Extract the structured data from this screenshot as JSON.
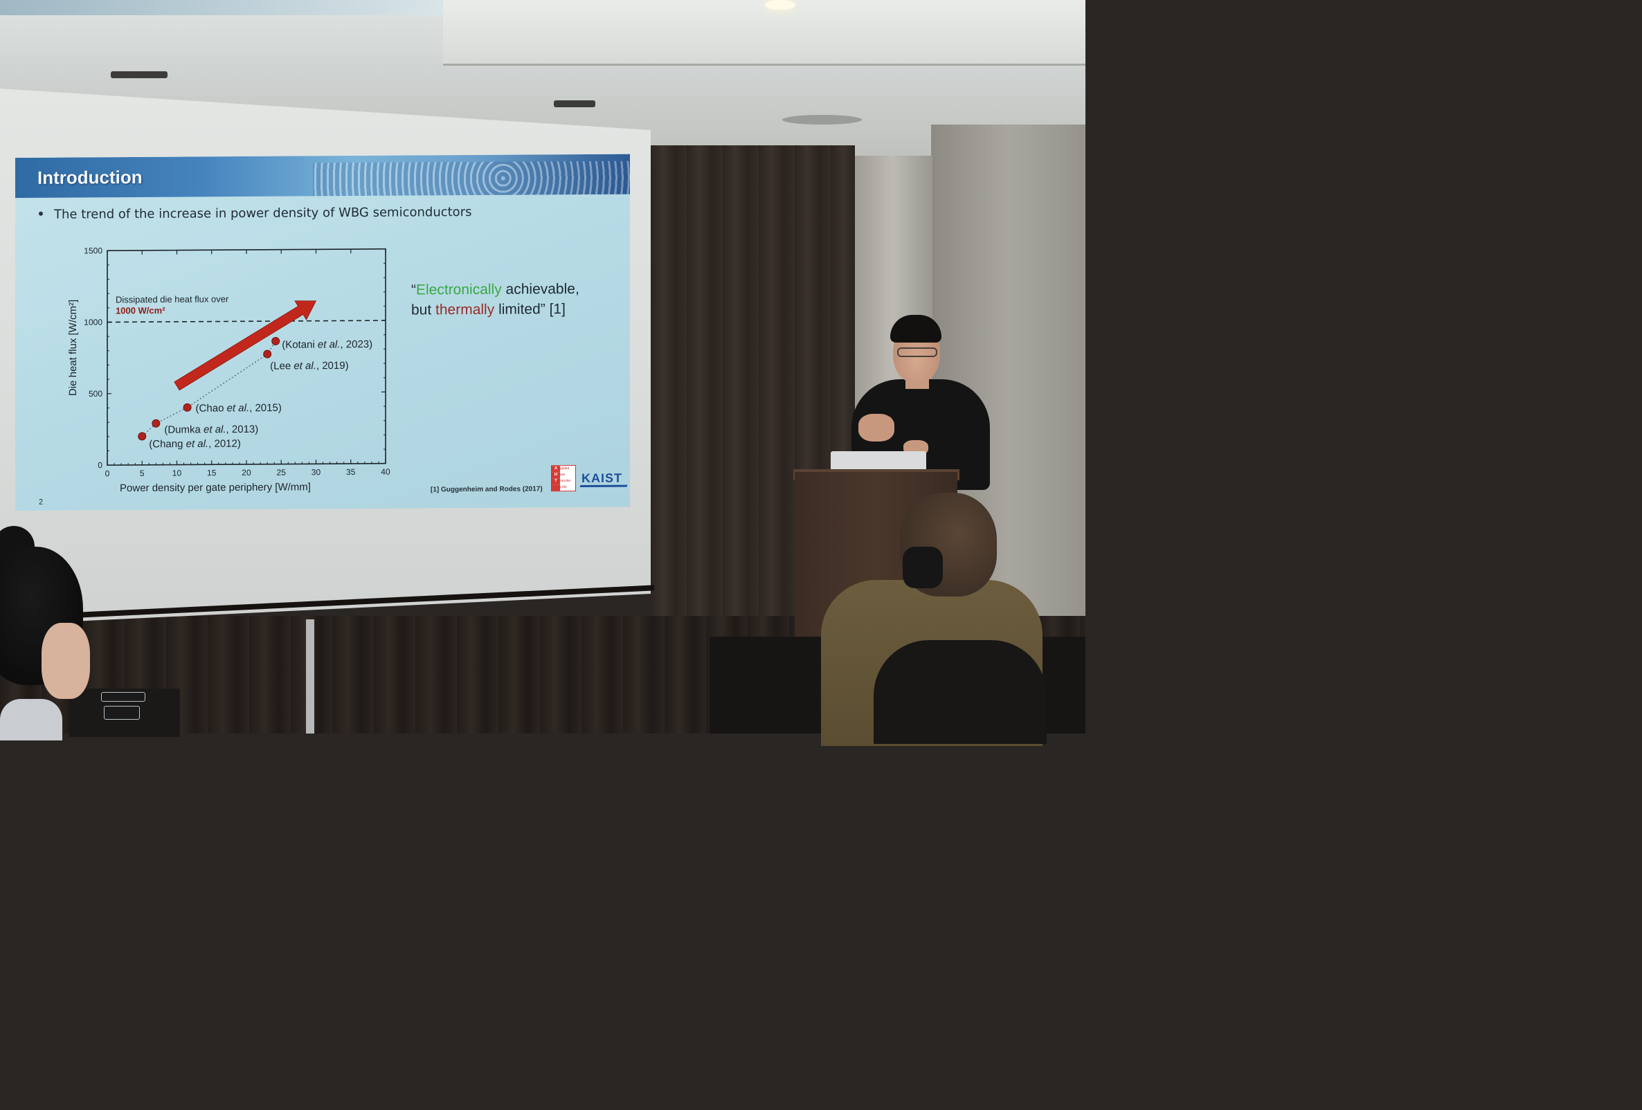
{
  "slide": {
    "title": "Introduction",
    "bullet": "The trend of the increase in power density of WBG semiconductors",
    "quote": {
      "open_mark": "“",
      "word_green": "Electronically",
      "after_green": " achievable,",
      "line2_start": "but ",
      "word_red": "thermally",
      "after_red": " limited” [1]"
    },
    "reference": "[1] Guggenheim and Rodes (2017)",
    "page_number": "2",
    "logo_aht_letters": [
      "A",
      "H",
      "T"
    ],
    "logo_aht_words": [
      "pplied",
      "eat",
      "ransfer",
      "LAB"
    ],
    "logo_kaist": "KAIST"
  },
  "chart_data": {
    "type": "scatter",
    "xlabel": "Power density per gate periphery [W/mm]",
    "ylabel": "Die heat flux [W/cm²]",
    "xlim": [
      0,
      40
    ],
    "ylim": [
      0,
      1500
    ],
    "x_ticks": [
      "0",
      "5",
      "10",
      "15",
      "20",
      "25",
      "30",
      "35",
      "40"
    ],
    "y_ticks": [
      "0",
      "500",
      "1000",
      "1500"
    ],
    "threshold": {
      "y": 1000,
      "label_line1": "Dissipated die heat flux over",
      "label_line2": "1000 W/cm²"
    },
    "points": [
      {
        "x": 5.0,
        "y": 200,
        "label_pre": "(Chang ",
        "label_em": "et al.",
        "label_post": ", 2012)"
      },
      {
        "x": 7.0,
        "y": 290,
        "label_pre": "(Dumka ",
        "label_em": "et al.",
        "label_post": ", 2013)"
      },
      {
        "x": 11.5,
        "y": 400,
        "label_pre": "(Chao ",
        "label_em": "et al.",
        "label_post": ", 2015)"
      },
      {
        "x": 23.0,
        "y": 770,
        "label_pre": "(Lee ",
        "label_em": "et al.",
        "label_post": ", 2019)"
      },
      {
        "x": 24.2,
        "y": 860,
        "label_pre": "(Kotani ",
        "label_em": "et al.",
        "label_post": ", 2023)"
      }
    ],
    "trend_arrow": {
      "from": [
        10,
        550
      ],
      "to": [
        30,
        1140
      ]
    },
    "colors": {
      "point": "#b0231c",
      "arrow": "#c2271c",
      "threshold_label": "#8e1c18"
    }
  }
}
